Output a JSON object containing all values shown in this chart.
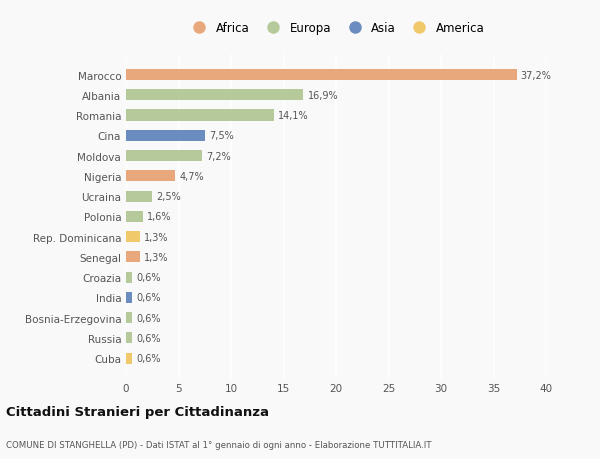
{
  "countries": [
    "Marocco",
    "Albania",
    "Romania",
    "Cina",
    "Moldova",
    "Nigeria",
    "Ucraina",
    "Polonia",
    "Rep. Dominicana",
    "Senegal",
    "Croazia",
    "India",
    "Bosnia-Erzegovina",
    "Russia",
    "Cuba"
  ],
  "values": [
    37.2,
    16.9,
    14.1,
    7.5,
    7.2,
    4.7,
    2.5,
    1.6,
    1.3,
    1.3,
    0.6,
    0.6,
    0.6,
    0.6,
    0.6
  ],
  "labels": [
    "37,2%",
    "16,9%",
    "14,1%",
    "7,5%",
    "7,2%",
    "4,7%",
    "2,5%",
    "1,6%",
    "1,3%",
    "1,3%",
    "0,6%",
    "0,6%",
    "0,6%",
    "0,6%",
    "0,6%"
  ],
  "continents": [
    "Africa",
    "Europa",
    "Europa",
    "Asia",
    "Europa",
    "Africa",
    "Europa",
    "Europa",
    "America",
    "Africa",
    "Europa",
    "Asia",
    "Europa",
    "Europa",
    "America"
  ],
  "colors": {
    "Africa": "#E8A87C",
    "Europa": "#B5C99A",
    "Asia": "#6B8CBE",
    "America": "#F0C96B"
  },
  "legend_order": [
    "Africa",
    "Europa",
    "Asia",
    "America"
  ],
  "legend_colors": [
    "#E8A87C",
    "#B5C99A",
    "#6B8CBE",
    "#F0C96B"
  ],
  "title": "Cittadini Stranieri per Cittadinanza",
  "subtitle": "COMUNE DI STANGHELLA (PD) - Dati ISTAT al 1° gennaio di ogni anno - Elaborazione TUTTITALIA.IT",
  "xlim": [
    0,
    40
  ],
  "xticks": [
    0,
    5,
    10,
    15,
    20,
    25,
    30,
    35,
    40
  ],
  "background_color": "#f9f9f9",
  "grid_color": "#ffffff",
  "bar_height": 0.55
}
